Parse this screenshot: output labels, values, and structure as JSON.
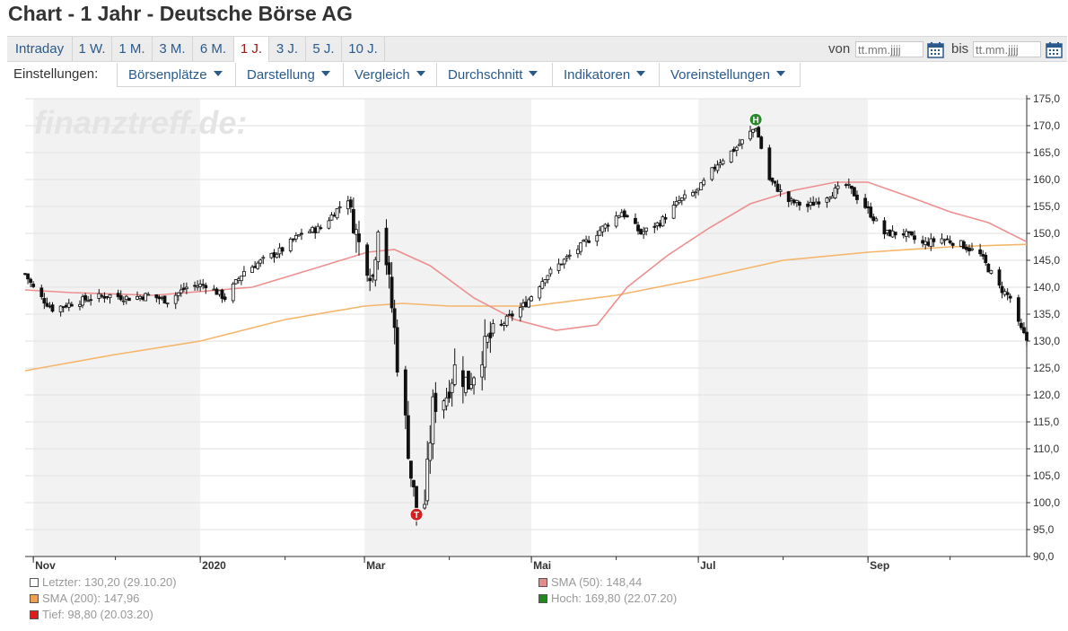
{
  "page": {
    "title": "Chart - 1 Jahr - Deutsche Börse AG"
  },
  "periods": [
    "Intraday",
    "1 W.",
    "1 M.",
    "3 M.",
    "6 M.",
    "1 J.",
    "3 J.",
    "5 J.",
    "10 J."
  ],
  "active_period": "1 J.",
  "date_range": {
    "from_label": "von",
    "to_label": "bis",
    "from_placeholder": "tt.mm.jjjj",
    "to_placeholder": "tt.mm.jjjj"
  },
  "settings": {
    "label": "Einstellungen:",
    "buttons": [
      "Börsenplätze",
      "Darstellung",
      "Vergleich",
      "Durchschnitt",
      "Indikatoren",
      "Voreinstellungen"
    ]
  },
  "watermark": "finanztreff.de:",
  "colors": {
    "sma50": "#ee8f8f",
    "sma200": "#f5b56a",
    "candle": "#111111",
    "high_marker": "#2a8a2a",
    "low_marker": "#d42020",
    "band": "#f2f2f2"
  },
  "chart_data": {
    "type": "candlestick",
    "title": "Chart - 1 Jahr - Deutsche Börse AG",
    "x_range": [
      "2019-10-29",
      "2020-10-29"
    ],
    "y_range": [
      90,
      175
    ],
    "y_ticks": [
      "175,0",
      "170,0",
      "165,0",
      "160,0",
      "155,0",
      "150,0",
      "145,0",
      "140,0",
      "135,0",
      "130,0",
      "125,0",
      "120,0",
      "115,0",
      "110,0",
      "105,0",
      "100,0",
      "95,0",
      "90,0"
    ],
    "x_ticks": [
      {
        "label": "Nov",
        "date": "2019-11-01"
      },
      {
        "label": "2020",
        "date": "2020-01-01"
      },
      {
        "label": "Mar",
        "date": "2020-03-01"
      },
      {
        "label": "Mai",
        "date": "2020-05-01"
      },
      {
        "label": "Jul",
        "date": "2020-07-01"
      },
      {
        "label": "Sep",
        "date": "2020-09-01"
      }
    ],
    "price_close": [
      [
        "2019-10-29",
        142.5
      ],
      [
        "2019-11-02",
        139.0
      ],
      [
        "2019-11-08",
        136.0
      ],
      [
        "2019-11-15",
        137.0
      ],
      [
        "2019-11-22",
        138.0
      ],
      [
        "2019-11-29",
        138.5
      ],
      [
        "2019-12-06",
        138.0
      ],
      [
        "2019-12-13",
        138.5
      ],
      [
        "2019-12-20",
        137.5
      ],
      [
        "2019-12-27",
        140.0
      ],
      [
        "2020-01-03",
        140.5
      ],
      [
        "2020-01-10",
        138.0
      ],
      [
        "2020-01-17",
        143.0
      ],
      [
        "2020-01-24",
        145.0
      ],
      [
        "2020-01-31",
        147.0
      ],
      [
        "2020-02-07",
        150.0
      ],
      [
        "2020-02-14",
        151.0
      ],
      [
        "2020-02-21",
        155.0
      ],
      [
        "2020-02-24",
        156.5
      ],
      [
        "2020-02-28",
        148.0
      ],
      [
        "2020-03-04",
        142.0
      ],
      [
        "2020-03-06",
        152.0
      ],
      [
        "2020-03-09",
        145.0
      ],
      [
        "2020-03-12",
        132.0
      ],
      [
        "2020-03-13",
        126.0
      ],
      [
        "2020-03-16",
        115.0
      ],
      [
        "2020-03-18",
        105.0
      ],
      [
        "2020-03-20",
        98.8
      ],
      [
        "2020-03-23",
        100.0
      ],
      [
        "2020-03-26",
        118.0
      ],
      [
        "2020-03-31",
        120.0
      ],
      [
        "2020-04-03",
        125.0
      ],
      [
        "2020-04-08",
        122.0
      ],
      [
        "2020-04-15",
        130.0
      ],
      [
        "2020-04-22",
        134.0
      ],
      [
        "2020-04-29",
        137.0
      ],
      [
        "2020-05-06",
        142.0
      ],
      [
        "2020-05-13",
        145.0
      ],
      [
        "2020-05-20",
        148.0
      ],
      [
        "2020-05-27",
        151.0
      ],
      [
        "2020-06-03",
        154.0
      ],
      [
        "2020-06-10",
        150.0
      ],
      [
        "2020-06-17",
        152.0
      ],
      [
        "2020-06-24",
        156.0
      ],
      [
        "2020-07-01",
        158.0
      ],
      [
        "2020-07-08",
        163.0
      ],
      [
        "2020-07-15",
        166.0
      ],
      [
        "2020-07-22",
        169.8
      ],
      [
        "2020-07-27",
        160.0
      ],
      [
        "2020-08-03",
        156.0
      ],
      [
        "2020-08-10",
        155.0
      ],
      [
        "2020-08-17",
        157.0
      ],
      [
        "2020-08-24",
        159.0
      ],
      [
        "2020-08-31",
        155.0
      ],
      [
        "2020-09-07",
        150.0
      ],
      [
        "2020-09-14",
        150.0
      ],
      [
        "2020-09-21",
        148.0
      ],
      [
        "2020-09-28",
        149.0
      ],
      [
        "2020-10-05",
        148.0
      ],
      [
        "2020-10-12",
        146.0
      ],
      [
        "2020-10-19",
        140.0
      ],
      [
        "2020-10-23",
        138.0
      ],
      [
        "2020-10-26",
        133.0
      ],
      [
        "2020-10-29",
        130.2
      ]
    ],
    "sma50": [
      [
        "2019-10-29",
        139.5
      ],
      [
        "2019-11-15",
        139.0
      ],
      [
        "2019-12-15",
        138.5
      ],
      [
        "2020-01-20",
        140.0
      ],
      [
        "2020-02-15",
        144.0
      ],
      [
        "2020-03-02",
        146.5
      ],
      [
        "2020-03-12",
        147.0
      ],
      [
        "2020-03-25",
        144.0
      ],
      [
        "2020-04-10",
        138.0
      ],
      [
        "2020-04-25",
        134.0
      ],
      [
        "2020-05-10",
        132.0
      ],
      [
        "2020-05-25",
        133.0
      ],
      [
        "2020-06-05",
        140.0
      ],
      [
        "2020-06-20",
        146.0
      ],
      [
        "2020-07-05",
        151.0
      ],
      [
        "2020-07-20",
        155.5
      ],
      [
        "2020-08-05",
        158.0
      ],
      [
        "2020-08-20",
        159.5
      ],
      [
        "2020-09-01",
        159.5
      ],
      [
        "2020-09-15",
        157.0
      ],
      [
        "2020-10-01",
        154.0
      ],
      [
        "2020-10-15",
        152.0
      ],
      [
        "2020-10-29",
        148.44
      ]
    ],
    "sma200": [
      [
        "2019-10-29",
        124.5
      ],
      [
        "2019-12-01",
        127.5
      ],
      [
        "2020-01-01",
        130.0
      ],
      [
        "2020-02-01",
        134.0
      ],
      [
        "2020-03-01",
        136.5
      ],
      [
        "2020-03-15",
        137.0
      ],
      [
        "2020-04-01",
        136.5
      ],
      [
        "2020-05-01",
        136.5
      ],
      [
        "2020-06-01",
        138.5
      ],
      [
        "2020-07-01",
        141.5
      ],
      [
        "2020-08-01",
        145.0
      ],
      [
        "2020-09-01",
        146.5
      ],
      [
        "2020-10-01",
        147.5
      ],
      [
        "2020-10-29",
        147.96
      ]
    ],
    "high_marker": {
      "label": "H",
      "date": "2020-07-22",
      "value": 169.8
    },
    "low_marker": {
      "label": "T",
      "date": "2020-03-20",
      "value": 98.8
    },
    "legend": [
      {
        "text": "Letzter: 130,20 (29.10.20)",
        "color": "#ffffff"
      },
      {
        "text": "SMA (50): 148,44",
        "color": "#e88a8a"
      },
      {
        "text": "SMA (200): 147,96",
        "color": "#f0a050"
      },
      {
        "text": "Hoch: 169,80 (22.07.20)",
        "color": "#1e8a1e"
      },
      {
        "text": "Tief: 98,80 (20.03.20)",
        "color": "#dd1c1c"
      }
    ]
  }
}
